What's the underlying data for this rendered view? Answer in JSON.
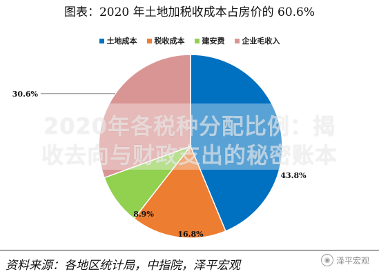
{
  "title": "图表：2020 年土地加税收成本占房价的 60.6%",
  "source": "资料来源：各地区统计局，中指院，泽平宏观",
  "brand": {
    "icon": "wechat-icon",
    "text": "泽平宏观"
  },
  "watermark": {
    "line1": "2020年各税种分配比例：揭",
    "line2": "收去向与财政支出的秘密账本"
  },
  "colors": {
    "land": "#0070C0",
    "tax": "#ED7D31",
    "build": "#92D050",
    "profit": "#D99594"
  },
  "chart_data": {
    "type": "pie",
    "categories": [
      "土地成本",
      "税收成本",
      "建安费",
      "企业毛收入"
    ],
    "values": [
      43.8,
      16.8,
      8.9,
      30.6
    ],
    "labels": [
      "43.8%",
      "16.8%",
      "8.9%",
      "30.6%"
    ],
    "start": "12 o'clock",
    "direction": "clockwise",
    "legend": "top-center"
  }
}
